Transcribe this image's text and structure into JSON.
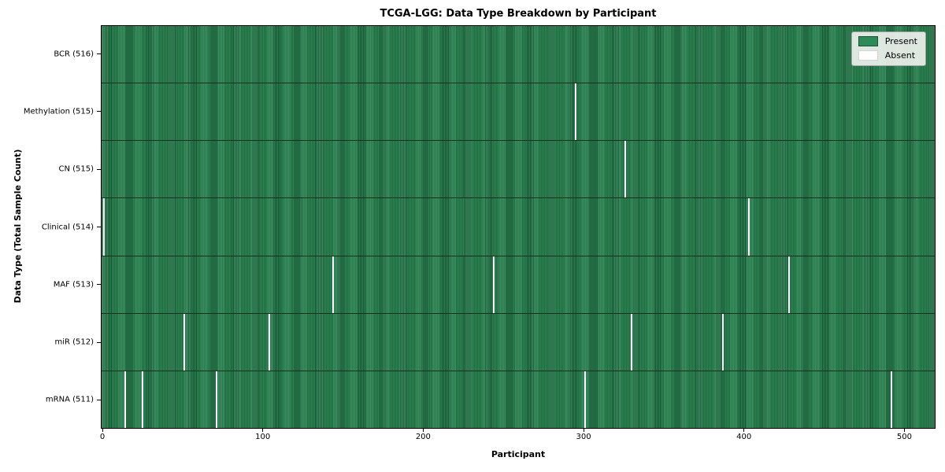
{
  "chart_data": {
    "type": "heatmap",
    "title": "TCGA-LGG: Data Type Breakdown by Participant",
    "xlabel": "Participant",
    "ylabel": "Data Type (Total Sample Count)",
    "x_ticks": [
      0,
      100,
      200,
      300,
      400,
      500
    ],
    "x_range": [
      0,
      516
    ],
    "n_participants": 516,
    "grid": false,
    "legend_position": "upper right",
    "rows": [
      {
        "label": "BCR (516)",
        "data_type": "BCR",
        "present_count": 516,
        "absent_participants": []
      },
      {
        "label": "Methylation (515)",
        "data_type": "Methylation",
        "present_count": 515,
        "absent_participants": [
          295
        ]
      },
      {
        "label": "CN (515)",
        "data_type": "CN",
        "present_count": 515,
        "absent_participants": [
          326
        ]
      },
      {
        "label": "Clinical (514)",
        "data_type": "Clinical",
        "present_count": 514,
        "absent_participants": [
          1,
          403
        ]
      },
      {
        "label": "MAF (513)",
        "data_type": "MAF",
        "present_count": 513,
        "absent_participants": [
          144,
          244,
          428
        ]
      },
      {
        "label": "miR (512)",
        "data_type": "miR",
        "present_count": 512,
        "absent_participants": [
          51,
          104,
          330,
          387
        ]
      },
      {
        "label": "mRNA (511)",
        "data_type": "mRNA",
        "present_count": 511,
        "absent_participants": [
          14,
          25,
          71,
          301,
          492
        ]
      }
    ],
    "legend": [
      {
        "label": "Present",
        "color": "#2e8b57"
      },
      {
        "label": "Absent",
        "color": "#ffffff"
      }
    ],
    "colors": {
      "present": "#2e8b57",
      "absent": "#ffffff",
      "bar_edge": "#14301f",
      "legend_background": "#edf1ed",
      "axis": "#000000"
    }
  }
}
